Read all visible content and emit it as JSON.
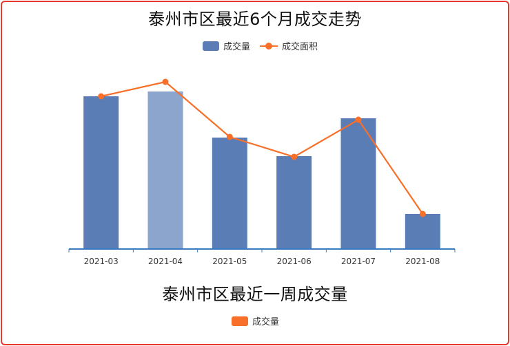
{
  "colors": {
    "bar": "#5a7db6",
    "bar_highlight": "#8ba5cc",
    "line": "#f86f2a",
    "axis": "#3a7ac0",
    "border": "#e8392c",
    "legend2_swatch": "#f86f2a"
  },
  "chart_data": [
    {
      "type": "bar",
      "title": "泰州市区最近6个月成交走势",
      "categories": [
        "2021-03",
        "2021-04",
        "2021-05",
        "2021-06",
        "2021-07",
        "2021-08"
      ],
      "series": [
        {
          "name": "成交量",
          "type": "bar",
          "values": [
            222,
            229,
            162,
            135,
            190,
            51
          ]
        },
        {
          "name": "成交面积",
          "type": "line",
          "values": [
            222,
            243,
            163,
            134,
            188,
            51
          ]
        }
      ],
      "highlighted_category": "2021-04",
      "ylim": [
        0,
        300
      ],
      "legend": "top-center",
      "grid": false
    },
    {
      "type": "bar",
      "title": "泰州市区最近一周成交量",
      "series": [
        {
          "name": "成交量",
          "values": []
        }
      ],
      "legend": "top-center"
    }
  ]
}
